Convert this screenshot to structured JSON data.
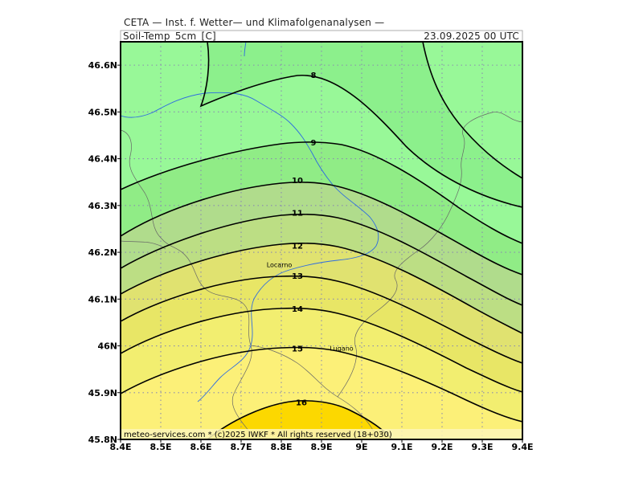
{
  "header": {
    "institute": "CETA — Inst. f. Wetter— und Klimafolgenanalysen —",
    "variable": "Soil-Temp_5cm_[C]",
    "valid_time": "23.09.2025 00 UTC"
  },
  "footer": "meteo-services.com * (c)2025 IWKF * All rights reserved (18+030)",
  "cities": [
    {
      "name": "Locarno",
      "lon": 8.795,
      "lat": 46.168
    },
    {
      "name": "Lugano",
      "lon": 8.95,
      "lat": 45.99
    }
  ],
  "chart_data": {
    "type": "map-contour",
    "variable": "Soil-Temp_5cm_[C]",
    "lon_range": [
      8.4,
      9.4
    ],
    "lat_range": [
      45.8,
      46.65
    ],
    "x_ticks": [
      "8.4E",
      "8.5E",
      "8.6E",
      "8.7E",
      "8.8E",
      "8.9E",
      "9E",
      "9.1E",
      "9.2E",
      "9.3E",
      "9.4E"
    ],
    "y_ticks": [
      "45.8N",
      "45.9N",
      "46N",
      "46.1N",
      "46.2N",
      "46.3N",
      "46.4N",
      "46.5N",
      "46.6N"
    ],
    "grid": true,
    "contour_levels": [
      8,
      9,
      10,
      11,
      12,
      13,
      14,
      15,
      16
    ],
    "contour_peaks": [
      {
        "level": 8,
        "lon": 8.88,
        "lat": 46.58
      },
      {
        "level": 9,
        "lon": 8.88,
        "lat": 46.435
      },
      {
        "level": 10,
        "lon": 8.84,
        "lat": 46.355
      },
      {
        "level": 11,
        "lon": 8.84,
        "lat": 46.285
      },
      {
        "level": 12,
        "lon": 8.84,
        "lat": 46.215
      },
      {
        "level": 13,
        "lon": 8.84,
        "lat": 46.15
      },
      {
        "level": 14,
        "lon": 8.84,
        "lat": 46.08
      },
      {
        "level": 15,
        "lon": 8.84,
        "lat": 45.995
      },
      {
        "level": 16,
        "lon": 8.85,
        "lat": 45.88
      }
    ],
    "fill_colors": {
      "lt8": "#98F898",
      "8_9": "#8CF08C",
      "9_10": "#90EC86",
      "10_11": "#B0DC8C",
      "11_12": "#BCDE84",
      "12_13": "#E0E270",
      "13_14": "#E8E666",
      "14_15": "#F2EE70",
      "15_16": "#FCF078",
      "gt16": "#FCD800"
    },
    "river_color": "#2E6CE0",
    "border_color": "#666666"
  }
}
